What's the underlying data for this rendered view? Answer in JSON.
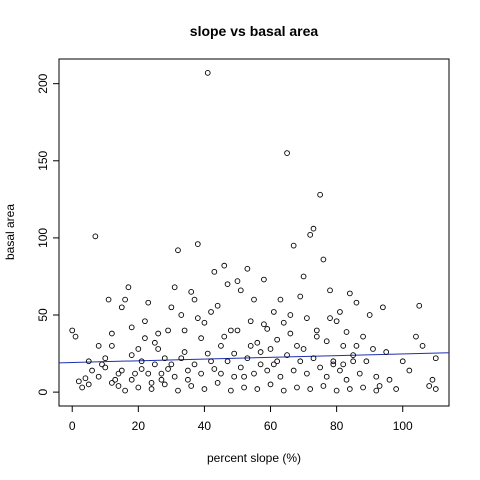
{
  "chart_data": {
    "type": "scatter",
    "title": "slope vs basal area",
    "xlabel": "percent slope (%)",
    "ylabel": "basal area",
    "xlim": [
      -4,
      114
    ],
    "ylim": [
      -9,
      216
    ],
    "xticks": [
      0,
      20,
      40,
      60,
      80,
      100
    ],
    "yticks": [
      0,
      50,
      100,
      150,
      200
    ],
    "grid": false,
    "point_color": "#000000",
    "trend_line": {
      "color": "#1f2fb0",
      "x": [
        -4,
        114
      ],
      "y": [
        19,
        25.5
      ]
    },
    "series": [
      {
        "points": [
          [
            0,
            40
          ],
          [
            1,
            36
          ],
          [
            2,
            7
          ],
          [
            3,
            3
          ],
          [
            4,
            9
          ],
          [
            5,
            5
          ],
          [
            6,
            14
          ],
          [
            7,
            101
          ],
          [
            8,
            30
          ],
          [
            9,
            18
          ],
          [
            10,
            22
          ],
          [
            11,
            60
          ],
          [
            12,
            38
          ],
          [
            13,
            8
          ],
          [
            14,
            12
          ],
          [
            15,
            55
          ],
          [
            16,
            60
          ],
          [
            17,
            68
          ],
          [
            18,
            24
          ],
          [
            19,
            12
          ],
          [
            20,
            28
          ],
          [
            21,
            15
          ],
          [
            22,
            46
          ],
          [
            23,
            58
          ],
          [
            24,
            6
          ],
          [
            25,
            32
          ],
          [
            26,
            38
          ],
          [
            27,
            12
          ],
          [
            28,
            22
          ],
          [
            29,
            40
          ],
          [
            30,
            18
          ],
          [
            31,
            68
          ],
          [
            32,
            92
          ],
          [
            33,
            50
          ],
          [
            34,
            26
          ],
          [
            35,
            14
          ],
          [
            36,
            65
          ],
          [
            37,
            60
          ],
          [
            38,
            96
          ],
          [
            39,
            35
          ],
          [
            40,
            45
          ],
          [
            41,
            207
          ],
          [
            42,
            20
          ],
          [
            43,
            78
          ],
          [
            44,
            56
          ],
          [
            45,
            30
          ],
          [
            46,
            82
          ],
          [
            47,
            70
          ],
          [
            48,
            40
          ],
          [
            49,
            25
          ],
          [
            50,
            72
          ],
          [
            51,
            66
          ],
          [
            52,
            10
          ],
          [
            53,
            80
          ],
          [
            54,
            46
          ],
          [
            55,
            60
          ],
          [
            56,
            32
          ],
          [
            57,
            18
          ],
          [
            58,
            73
          ],
          [
            59,
            41
          ],
          [
            60,
            28
          ],
          [
            61,
            52
          ],
          [
            62,
            20
          ],
          [
            63,
            60
          ],
          [
            64,
            45
          ],
          [
            65,
            155
          ],
          [
            66,
            38
          ],
          [
            67,
            95
          ],
          [
            68,
            30
          ],
          [
            69,
            62
          ],
          [
            70,
            75
          ],
          [
            71,
            48
          ],
          [
            72,
            102
          ],
          [
            73,
            106
          ],
          [
            74,
            40
          ],
          [
            75,
            128
          ],
          [
            76,
            86
          ],
          [
            77,
            33
          ],
          [
            78,
            66
          ],
          [
            79,
            20
          ],
          [
            80,
            46
          ],
          [
            81,
            52
          ],
          [
            82,
            30
          ],
          [
            83,
            39
          ],
          [
            84,
            64
          ],
          [
            85,
            24
          ],
          [
            86,
            58
          ],
          [
            87,
            12
          ],
          [
            88,
            36
          ],
          [
            89,
            20
          ],
          [
            90,
            50
          ],
          [
            91,
            28
          ],
          [
            92,
            10
          ],
          [
            93,
            4
          ],
          [
            94,
            55
          ],
          [
            95,
            26
          ],
          [
            96,
            8
          ],
          [
            98,
            2
          ],
          [
            100,
            20
          ],
          [
            102,
            14
          ],
          [
            104,
            36
          ],
          [
            105,
            56
          ],
          [
            106,
            30
          ],
          [
            108,
            4
          ],
          [
            109,
            8
          ],
          [
            110,
            22
          ],
          [
            110,
            2
          ],
          [
            5,
            20
          ],
          [
            12,
            30
          ],
          [
            18,
            42
          ],
          [
            22,
            35
          ],
          [
            26,
            28
          ],
          [
            30,
            55
          ],
          [
            34,
            40
          ],
          [
            38,
            48
          ],
          [
            42,
            52
          ],
          [
            46,
            36
          ],
          [
            50,
            40
          ],
          [
            54,
            30
          ],
          [
            58,
            44
          ],
          [
            62,
            34
          ],
          [
            66,
            50
          ],
          [
            70,
            28
          ],
          [
            74,
            36
          ],
          [
            78,
            48
          ],
          [
            82,
            18
          ],
          [
            86,
            30
          ],
          [
            14,
            4
          ],
          [
            16,
            1
          ],
          [
            20,
            3
          ],
          [
            24,
            2
          ],
          [
            28,
            5
          ],
          [
            32,
            1
          ],
          [
            36,
            4
          ],
          [
            40,
            2
          ],
          [
            44,
            6
          ],
          [
            48,
            1
          ],
          [
            52,
            3
          ],
          [
            56,
            2
          ],
          [
            60,
            5
          ],
          [
            64,
            1
          ],
          [
            68,
            3
          ],
          [
            72,
            2
          ],
          [
            76,
            4
          ],
          [
            80,
            1
          ],
          [
            84,
            2
          ],
          [
            88,
            3
          ],
          [
            92,
            1
          ],
          [
            8,
            10
          ],
          [
            10,
            16
          ],
          [
            12,
            6
          ],
          [
            15,
            14
          ],
          [
            18,
            8
          ],
          [
            21,
            20
          ],
          [
            23,
            12
          ],
          [
            25,
            18
          ],
          [
            27,
            8
          ],
          [
            29,
            15
          ],
          [
            31,
            10
          ],
          [
            33,
            22
          ],
          [
            35,
            8
          ],
          [
            37,
            18
          ],
          [
            39,
            12
          ],
          [
            41,
            25
          ],
          [
            43,
            15
          ],
          [
            45,
            12
          ],
          [
            47,
            20
          ],
          [
            49,
            10
          ],
          [
            51,
            16
          ],
          [
            53,
            22
          ],
          [
            55,
            12
          ],
          [
            57,
            26
          ],
          [
            59,
            14
          ],
          [
            61,
            18
          ],
          [
            63,
            10
          ],
          [
            65,
            24
          ],
          [
            67,
            14
          ],
          [
            69,
            20
          ],
          [
            71,
            12
          ],
          [
            73,
            22
          ],
          [
            75,
            16
          ],
          [
            77,
            10
          ],
          [
            79,
            18
          ],
          [
            81,
            14
          ],
          [
            83,
            8
          ],
          [
            85,
            20
          ]
        ]
      }
    ]
  }
}
